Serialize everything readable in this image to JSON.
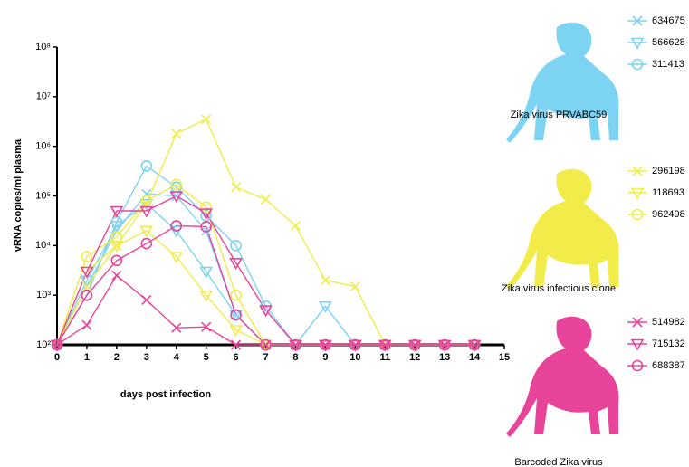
{
  "chart_data": {
    "type": "line",
    "x_label": "days post infection",
    "y_label": "vRNA copies/ml plasma",
    "log_y": true,
    "x": [
      0,
      1,
      2,
      3,
      4,
      5,
      6,
      7,
      8,
      9,
      10,
      11,
      12,
      13,
      14
    ],
    "xlim": [
      0,
      15
    ],
    "xticks": [
      0,
      1,
      2,
      3,
      4,
      5,
      6,
      7,
      8,
      9,
      10,
      11,
      12,
      13,
      14,
      15
    ],
    "ylim": [
      100,
      100000000
    ],
    "yticks": [
      {
        "value": 100,
        "label": "10²"
      },
      {
        "value": 1000,
        "label": "10³"
      },
      {
        "value": 10000,
        "label": "10⁴"
      },
      {
        "value": 100000,
        "label": "10⁵"
      },
      {
        "value": 1000000,
        "label": "10⁶"
      },
      {
        "value": 10000000,
        "label": "10⁷"
      },
      {
        "value": 100000000,
        "label": "10⁸"
      }
    ],
    "legend_groups": [
      "Zika virus PRVABC59",
      "Zika virus infectious clone",
      "Barcoded Zika virus"
    ],
    "series": [
      {
        "name": "634675",
        "color": "#7dd3f2",
        "marker": "x",
        "values": [
          100,
          1500,
          20000,
          110000,
          100000,
          20000,
          400,
          100,
          100,
          100,
          100,
          100,
          100,
          100,
          100
        ]
      },
      {
        "name": "566628",
        "color": "#7dd3f2",
        "marker": "triangle",
        "values": [
          100,
          2000,
          25000,
          70000,
          20000,
          3000,
          400,
          100,
          100,
          600,
          100,
          100,
          100,
          100,
          100
        ]
      },
      {
        "name": "311413",
        "color": "#7dd3f2",
        "marker": "circle",
        "values": [
          100,
          1000,
          30000,
          400000,
          150000,
          40000,
          10000,
          600,
          100,
          100,
          100,
          100,
          100,
          100,
          100
        ]
      },
      {
        "name": "296198",
        "color": "#f2ec4a",
        "marker": "x",
        "values": [
          100,
          1500,
          10000,
          70000,
          1800000,
          3500000,
          150000,
          85000,
          25000,
          2000,
          1500,
          100,
          100,
          100,
          100
        ]
      },
      {
        "name": "118693",
        "color": "#f2ec4a",
        "marker": "triangle",
        "values": [
          100,
          3000,
          10000,
          20000,
          6000,
          1000,
          200,
          100,
          100,
          100,
          100,
          100,
          100,
          100,
          100
        ]
      },
      {
        "name": "962498",
        "color": "#f2ec4a",
        "marker": "circle",
        "values": [
          100,
          6000,
          15000,
          80000,
          170000,
          60000,
          1000,
          100,
          100,
          100,
          100,
          100,
          100,
          100,
          100
        ]
      },
      {
        "name": "514982",
        "color": "#e8449a",
        "marker": "x",
        "values": [
          100,
          250,
          2500,
          800,
          220,
          230,
          100,
          100,
          100,
          100,
          100,
          100,
          100,
          100,
          100
        ]
      },
      {
        "name": "715132",
        "color": "#e8449a",
        "marker": "triangle",
        "values": [
          100,
          3000,
          50000,
          50000,
          100000,
          45000,
          4500,
          500,
          100,
          100,
          100,
          100,
          100,
          100,
          100
        ]
      },
      {
        "name": "688387",
        "color": "#e8449a",
        "marker": "circle",
        "values": [
          100,
          1000,
          5000,
          11000,
          25000,
          24000,
          400,
          100,
          100,
          100,
          100,
          100,
          100,
          100,
          100
        ]
      }
    ]
  }
}
